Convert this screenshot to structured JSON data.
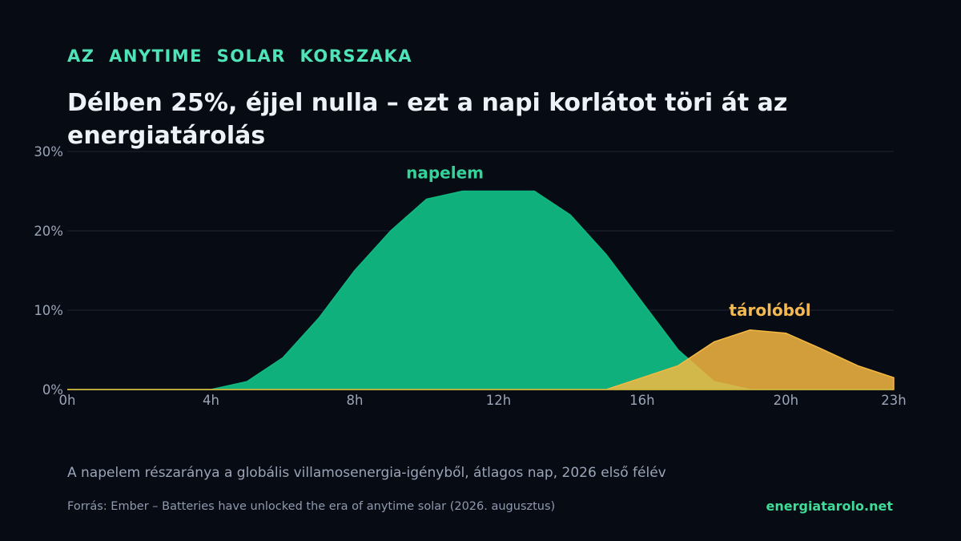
{
  "header": {
    "kicker": "AZ  ANYTIME  SOLAR  KORSZAKA",
    "title": "Délben 25%, éjjel nulla – ezt a napi korlátot töri át az energiatárolás"
  },
  "footer": {
    "subtitle": "A napelem részaránya a globális villamosenergia-igényből, átlagos nap, 2026 első félév",
    "source": "Forrás: Ember – Batteries have unlocked the era of anytime solar (2026. augusztus)",
    "brand": "energiatarolo.net"
  },
  "chart_data": {
    "type": "area",
    "x": [
      0,
      1,
      2,
      3,
      4,
      5,
      6,
      7,
      8,
      9,
      10,
      11,
      12,
      13,
      14,
      15,
      16,
      17,
      18,
      19,
      20,
      21,
      22,
      23
    ],
    "xticks": [
      0,
      4,
      8,
      12,
      16,
      20,
      23
    ],
    "xtick_labels": [
      "0h",
      "4h",
      "8h",
      "12h",
      "16h",
      "20h",
      "23h"
    ],
    "yticks": [
      0,
      10,
      20,
      30
    ],
    "ytick_labels": [
      "0%",
      "10%",
      "20%",
      "30%"
    ],
    "xlim": [
      0,
      23
    ],
    "ylim": [
      0,
      30
    ],
    "grid": true,
    "series": [
      {
        "name": "napelem",
        "color": "#10b981",
        "values": [
          0,
          0,
          0,
          0,
          0,
          1,
          4,
          9,
          15,
          20,
          24,
          25,
          25,
          25,
          22,
          17,
          11,
          5,
          1,
          0,
          0,
          0,
          0,
          0
        ]
      },
      {
        "name": "tárolóból",
        "color": "#f5b942",
        "values": [
          0,
          0,
          0,
          0,
          0,
          0,
          0,
          0,
          0,
          0,
          0,
          0,
          0,
          0,
          0,
          0,
          1.5,
          3,
          6,
          7.5,
          7.1,
          5.1,
          3,
          1.5
        ]
      }
    ]
  }
}
